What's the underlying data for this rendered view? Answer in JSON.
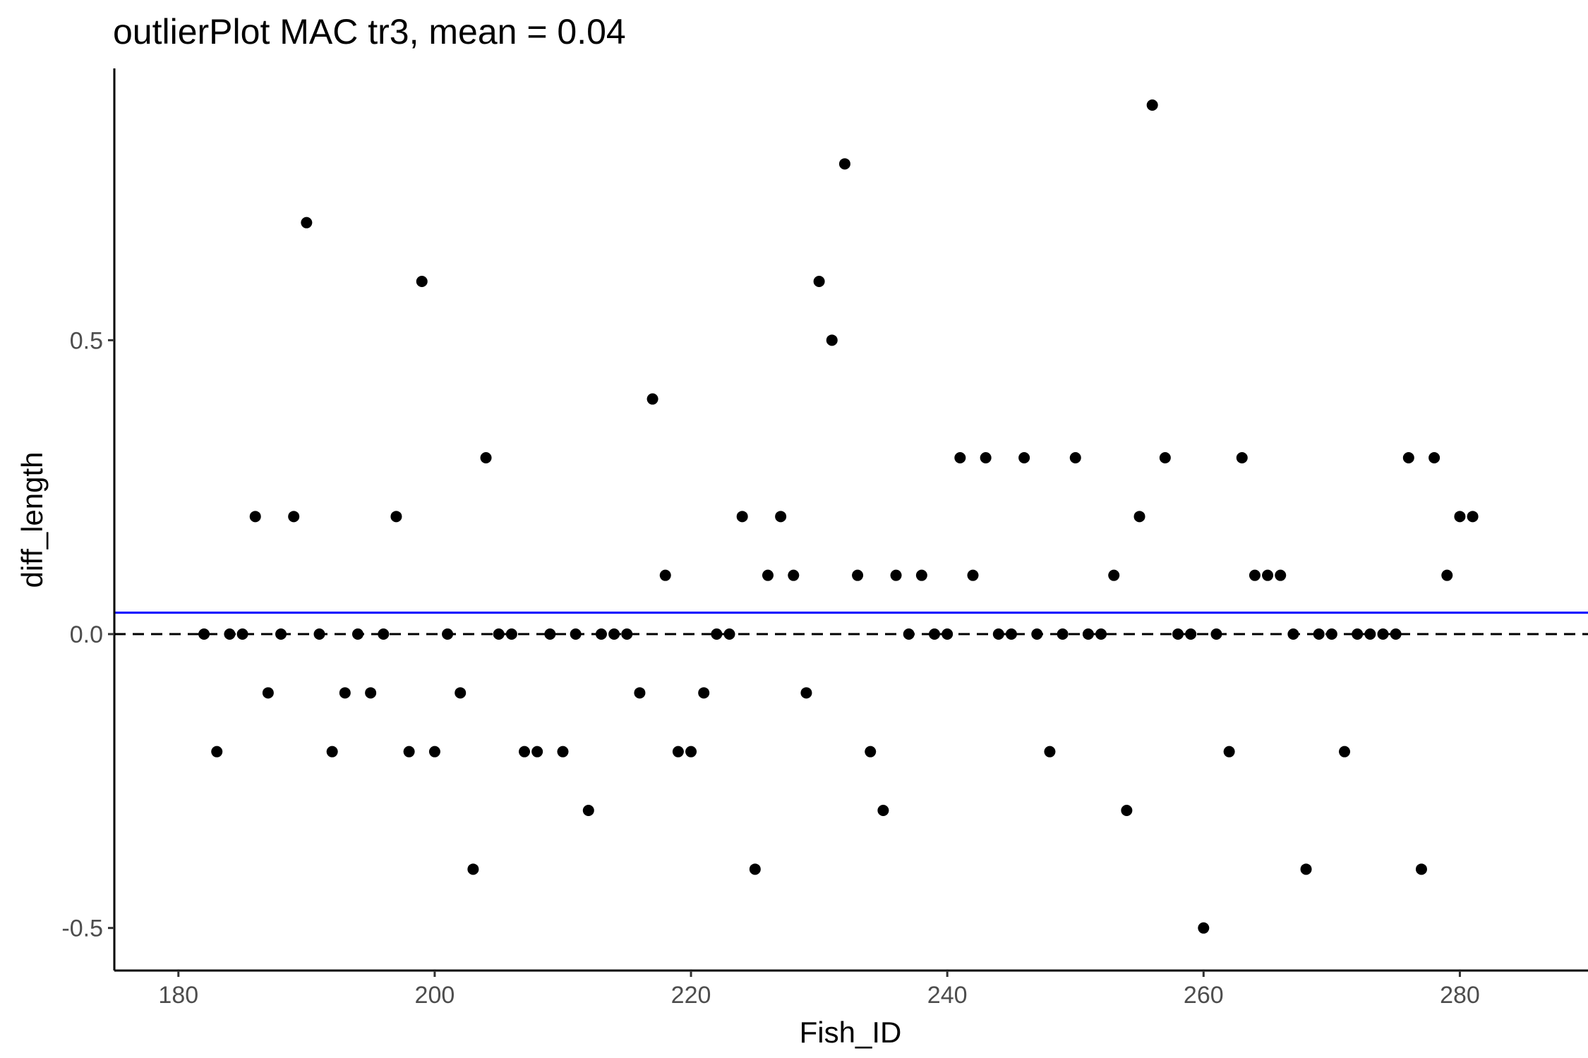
{
  "chart_data": {
    "type": "scatter",
    "title": "outlierPlot MAC tr3, mean = 0.04",
    "xlabel": "Fish_ID",
    "ylabel": "diff_length",
    "xlim": [
      175.0,
      290.0
    ],
    "ylim": [
      -0.5724,
      0.9624
    ],
    "x_ticks": [
      180,
      200,
      220,
      240,
      260,
      280
    ],
    "y_ticks": [
      -0.5,
      0.0,
      0.5
    ],
    "x_tick_labels": [
      "180",
      "200",
      "220",
      "240",
      "260",
      "280"
    ],
    "y_tick_labels": [
      "-0.5",
      "0.0",
      "0.5"
    ],
    "grid": false,
    "reference_lines": [
      {
        "type": "hline",
        "y": 0.0,
        "style": "dashed",
        "color": "#000000"
      },
      {
        "type": "hline",
        "y": 0.0365,
        "style": "solid",
        "color": "#0000ff"
      }
    ],
    "point_color": "#000000",
    "points": [
      {
        "x": 182,
        "y": 0.0
      },
      {
        "x": 183,
        "y": -0.2
      },
      {
        "x": 184,
        "y": 0.0
      },
      {
        "x": 185,
        "y": 0.0
      },
      {
        "x": 186,
        "y": 0.2
      },
      {
        "x": 187,
        "y": -0.1
      },
      {
        "x": 188,
        "y": 0.0
      },
      {
        "x": 189,
        "y": 0.2
      },
      {
        "x": 190,
        "y": 0.7
      },
      {
        "x": 191,
        "y": 0.0
      },
      {
        "x": 192,
        "y": -0.2
      },
      {
        "x": 193,
        "y": -0.1
      },
      {
        "x": 194,
        "y": 0.0
      },
      {
        "x": 195,
        "y": -0.1
      },
      {
        "x": 196,
        "y": 0.0
      },
      {
        "x": 197,
        "y": 0.2
      },
      {
        "x": 198,
        "y": -0.2
      },
      {
        "x": 199,
        "y": 0.6
      },
      {
        "x": 200,
        "y": -0.2
      },
      {
        "x": 201,
        "y": 0.0
      },
      {
        "x": 202,
        "y": -0.1
      },
      {
        "x": 203,
        "y": -0.4
      },
      {
        "x": 204,
        "y": 0.3
      },
      {
        "x": 205,
        "y": 0.0
      },
      {
        "x": 206,
        "y": 0.0
      },
      {
        "x": 207,
        "y": -0.2
      },
      {
        "x": 208,
        "y": -0.2
      },
      {
        "x": 209,
        "y": 0.0
      },
      {
        "x": 210,
        "y": -0.2
      },
      {
        "x": 211,
        "y": 0.0
      },
      {
        "x": 212,
        "y": -0.3
      },
      {
        "x": 213,
        "y": 0.0
      },
      {
        "x": 214,
        "y": 0.0
      },
      {
        "x": 215,
        "y": 0.0
      },
      {
        "x": 216,
        "y": -0.1
      },
      {
        "x": 217,
        "y": 0.4
      },
      {
        "x": 218,
        "y": 0.1
      },
      {
        "x": 219,
        "y": -0.2
      },
      {
        "x": 220,
        "y": -0.2
      },
      {
        "x": 221,
        "y": -0.1
      },
      {
        "x": 222,
        "y": 0.0
      },
      {
        "x": 223,
        "y": 0.0
      },
      {
        "x": 224,
        "y": 0.2
      },
      {
        "x": 225,
        "y": -0.4
      },
      {
        "x": 226,
        "y": 0.1
      },
      {
        "x": 227,
        "y": 0.2
      },
      {
        "x": 228,
        "y": 0.1
      },
      {
        "x": 229,
        "y": -0.1
      },
      {
        "x": 230,
        "y": 0.6
      },
      {
        "x": 231,
        "y": 0.5
      },
      {
        "x": 232,
        "y": 0.8
      },
      {
        "x": 233,
        "y": 0.1
      },
      {
        "x": 234,
        "y": -0.2
      },
      {
        "x": 235,
        "y": -0.3
      },
      {
        "x": 236,
        "y": 0.1
      },
      {
        "x": 237,
        "y": 0.0
      },
      {
        "x": 238,
        "y": 0.1
      },
      {
        "x": 239,
        "y": 0.0
      },
      {
        "x": 240,
        "y": 0.0
      },
      {
        "x": 241,
        "y": 0.3
      },
      {
        "x": 242,
        "y": 0.1
      },
      {
        "x": 243,
        "y": 0.3
      },
      {
        "x": 244,
        "y": 0.0
      },
      {
        "x": 245,
        "y": 0.0
      },
      {
        "x": 246,
        "y": 0.3
      },
      {
        "x": 247,
        "y": 0.0
      },
      {
        "x": 248,
        "y": -0.2
      },
      {
        "x": 249,
        "y": 0.0
      },
      {
        "x": 250,
        "y": 0.3
      },
      {
        "x": 251,
        "y": 0.0
      },
      {
        "x": 252,
        "y": 0.0
      },
      {
        "x": 253,
        "y": 0.1
      },
      {
        "x": 254,
        "y": -0.3
      },
      {
        "x": 255,
        "y": 0.2
      },
      {
        "x": 256,
        "y": 0.9
      },
      {
        "x": 257,
        "y": 0.3
      },
      {
        "x": 258,
        "y": 0.0
      },
      {
        "x": 259,
        "y": 0.0
      },
      {
        "x": 260,
        "y": -0.5
      },
      {
        "x": 261,
        "y": 0.0
      },
      {
        "x": 262,
        "y": -0.2
      },
      {
        "x": 263,
        "y": 0.3
      },
      {
        "x": 264,
        "y": 0.1
      },
      {
        "x": 265,
        "y": 0.1
      },
      {
        "x": 266,
        "y": 0.1
      },
      {
        "x": 267,
        "y": 0.0
      },
      {
        "x": 268,
        "y": -0.4
      },
      {
        "x": 269,
        "y": 0.0
      },
      {
        "x": 270,
        "y": 0.0
      },
      {
        "x": 271,
        "y": -0.2
      },
      {
        "x": 272,
        "y": 0.0
      },
      {
        "x": 273,
        "y": 0.0
      },
      {
        "x": 274,
        "y": 0.0
      },
      {
        "x": 275,
        "y": 0.0
      },
      {
        "x": 276,
        "y": 0.3
      },
      {
        "x": 277,
        "y": -0.4
      },
      {
        "x": 278,
        "y": 0.3
      },
      {
        "x": 279,
        "y": 0.1
      },
      {
        "x": 280,
        "y": 0.2
      },
      {
        "x": 281,
        "y": 0.2
      }
    ]
  }
}
